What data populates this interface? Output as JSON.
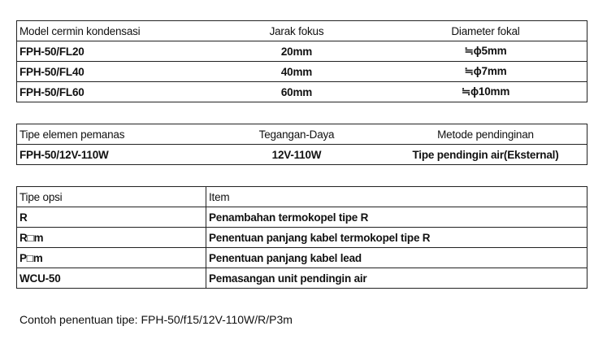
{
  "condenser_table": {
    "headers": [
      "Model cermin kondensasi",
      "Jarak fokus",
      "Diameter fokal"
    ],
    "rows": [
      [
        "FPH-50/FL20",
        "20mm",
        "≒ϕ5mm"
      ],
      [
        "FPH-50/FL40",
        "40mm",
        "≒ϕ7mm"
      ],
      [
        "FPH-50/FL60",
        "60mm",
        "≒ϕ10mm"
      ]
    ]
  },
  "heater_table": {
    "headers": [
      "Tipe elemen pemanas",
      "Tegangan-Daya",
      "Metode pendinginan"
    ],
    "rows": [
      [
        "FPH-50/12V-110W",
        "12V-110W",
        "Tipe pendingin air(Eksternal)"
      ]
    ]
  },
  "option_table": {
    "headers": [
      "Tipe opsi",
      "Item"
    ],
    "rows": [
      [
        "R",
        "Penambahan termokopel tipe R"
      ],
      [
        "R□m",
        "Penentuan panjang kabel termokopel tipe R"
      ],
      [
        "P□m",
        "Penentuan panjang kabel lead"
      ],
      [
        "WCU-50",
        "Pemasangan unit pendingin air"
      ]
    ]
  },
  "caption": "Contoh penentuan tipe: FPH-50/f15/12V-110W/R/P3m"
}
